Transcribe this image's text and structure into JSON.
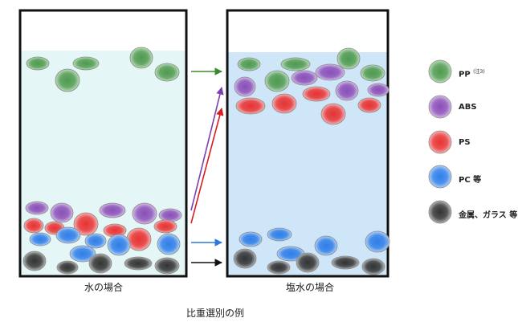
{
  "title": "比重選別の例",
  "containers": {
    "left": {
      "caption": "水の場合",
      "liquid_color": "#e4f6f6"
    },
    "right": {
      "caption": "塩水の場合",
      "liquid_color": "#cfe6f8"
    }
  },
  "materials": [
    {
      "key": "pp",
      "label": "PP",
      "note": "(注3)",
      "color": "#4f9a4f",
      "light": "#d8eed5"
    },
    {
      "key": "abs",
      "label": "ABS",
      "color": "#8b4fb8",
      "light": "#ead9f4"
    },
    {
      "key": "ps",
      "label": "PS",
      "color": "#e83232",
      "light": "#fdd6d6"
    },
    {
      "key": "pc",
      "label": "PC 等",
      "color": "#2f7ee8",
      "light": "#d4e7fd"
    },
    {
      "key": "metal",
      "label": "金属、ガラス 等",
      "color": "#333333",
      "light": "#d8d8d8"
    }
  ],
  "arrow_colors": {
    "pp": "#3a8a2a",
    "abs": "#7a3fb0",
    "ps": "#d81e1e",
    "pc": "#2a78e0",
    "metal": "#111111"
  }
}
